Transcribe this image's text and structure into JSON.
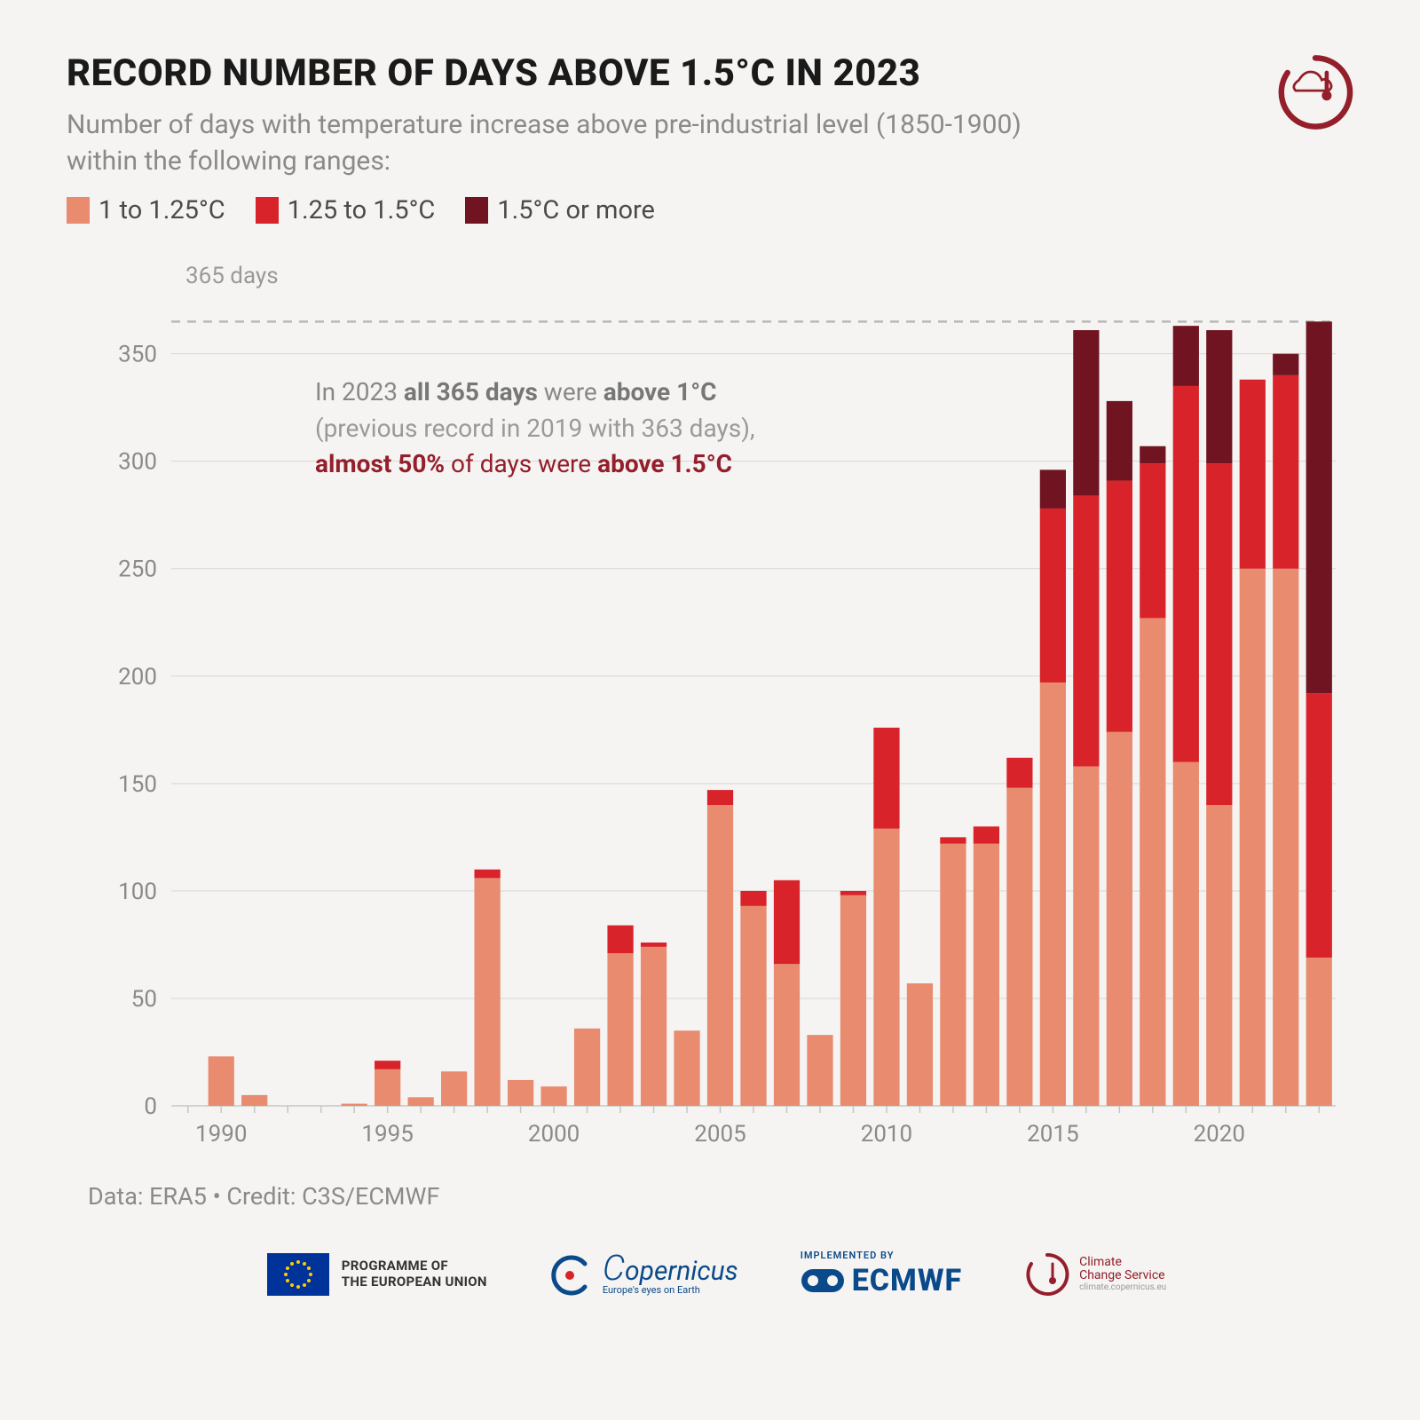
{
  "title": "RECORD NUMBER OF DAYS ABOVE 1.5°C IN 2023",
  "subtitle": "Number of days with temperature increase above pre-industrial level (1850-1900) within the following ranges:",
  "legend": [
    {
      "label": "1 to 1.25°C",
      "color": "#e88b6f"
    },
    {
      "label": "1.25 to 1.5°C",
      "color": "#d8232a"
    },
    {
      "label": "1.5°C or more",
      "color": "#6f1420"
    }
  ],
  "reference_line": {
    "value": 365,
    "label": "365 days",
    "color": "#b8b8b8"
  },
  "annotation": {
    "line1_pre": "In 2023 ",
    "line1_b1": "all 365 days",
    "line1_mid": " were ",
    "line1_b2": "above 1°C",
    "line2": "(previous record in 2019 with 363 days),",
    "line3_b1": "almost 50%",
    "line3_mid": " of days were ",
    "line3_b2": "above 1.5°C"
  },
  "chart": {
    "type": "stacked-bar",
    "background": "#f5f4f2",
    "grid_color": "#d8d6d2",
    "axis_color": "#c8c6c2",
    "tick_font_size": 26,
    "tick_color": "#8a8a8a",
    "y": {
      "min": 0,
      "max": 365,
      "ticks": [
        0,
        50,
        100,
        150,
        200,
        250,
        300,
        350
      ],
      "plot_max": 380
    },
    "x_tick_labels": [
      1990,
      1995,
      2000,
      2005,
      2010,
      2015,
      2020
    ],
    "years_start": 1989,
    "years_end": 2023,
    "bar_gap_ratio": 0.22,
    "series_colors": {
      "low": "#e88b6f",
      "mid": "#d8232a",
      "high": "#6f1420"
    },
    "data": [
      {
        "year": 1989,
        "low": 0,
        "mid": 0,
        "high": 0
      },
      {
        "year": 1990,
        "low": 23,
        "mid": 0,
        "high": 0
      },
      {
        "year": 1991,
        "low": 5,
        "mid": 0,
        "high": 0
      },
      {
        "year": 1992,
        "low": 0,
        "mid": 0,
        "high": 0
      },
      {
        "year": 1993,
        "low": 0,
        "mid": 0,
        "high": 0
      },
      {
        "year": 1994,
        "low": 1,
        "mid": 0,
        "high": 0
      },
      {
        "year": 1995,
        "low": 17,
        "mid": 4,
        "high": 0
      },
      {
        "year": 1996,
        "low": 4,
        "mid": 0,
        "high": 0
      },
      {
        "year": 1997,
        "low": 16,
        "mid": 0,
        "high": 0
      },
      {
        "year": 1998,
        "low": 106,
        "mid": 4,
        "high": 0
      },
      {
        "year": 1999,
        "low": 12,
        "mid": 0,
        "high": 0
      },
      {
        "year": 2000,
        "low": 9,
        "mid": 0,
        "high": 0
      },
      {
        "year": 2001,
        "low": 36,
        "mid": 0,
        "high": 0
      },
      {
        "year": 2002,
        "low": 71,
        "mid": 13,
        "high": 0
      },
      {
        "year": 2003,
        "low": 74,
        "mid": 2,
        "high": 0
      },
      {
        "year": 2004,
        "low": 35,
        "mid": 0,
        "high": 0
      },
      {
        "year": 2005,
        "low": 140,
        "mid": 7,
        "high": 0
      },
      {
        "year": 2006,
        "low": 93,
        "mid": 7,
        "high": 0
      },
      {
        "year": 2007,
        "low": 66,
        "mid": 39,
        "high": 0
      },
      {
        "year": 2008,
        "low": 33,
        "mid": 0,
        "high": 0
      },
      {
        "year": 2009,
        "low": 98,
        "mid": 2,
        "high": 0
      },
      {
        "year": 2010,
        "low": 129,
        "mid": 47,
        "high": 0
      },
      {
        "year": 2011,
        "low": 57,
        "mid": 0,
        "high": 0
      },
      {
        "year": 2012,
        "low": 122,
        "mid": 3,
        "high": 0
      },
      {
        "year": 2013,
        "low": 122,
        "mid": 8,
        "high": 0
      },
      {
        "year": 2014,
        "low": 148,
        "mid": 14,
        "high": 0
      },
      {
        "year": 2015,
        "low": 197,
        "mid": 81,
        "high": 18
      },
      {
        "year": 2016,
        "low": 158,
        "mid": 126,
        "high": 77
      },
      {
        "year": 2017,
        "low": 174,
        "mid": 117,
        "high": 37
      },
      {
        "year": 2018,
        "low": 227,
        "mid": 72,
        "high": 8
      },
      {
        "year": 2019,
        "low": 160,
        "mid": 175,
        "high": 28
      },
      {
        "year": 2020,
        "low": 140,
        "mid": 159,
        "high": 62
      },
      {
        "year": 2021,
        "low": 250,
        "mid": 88,
        "high": 0
      },
      {
        "year": 2022,
        "low": 250,
        "mid": 90,
        "high": 10
      },
      {
        "year": 2023,
        "low": 69,
        "mid": 123,
        "high": 173
      }
    ]
  },
  "credit": "Data: ERA5 • Credit: C3S/ECMWF",
  "footer": {
    "eu_line1": "PROGRAMME OF",
    "eu_line2": "THE EUROPEAN UNION",
    "copernicus": "opernicus",
    "copernicus_tag": "Europe's eyes on Earth",
    "ecmwf_top": "IMPLEMENTED BY",
    "ecmwf": "ECMWF",
    "ccs1": "Climate",
    "ccs2": "Change Service",
    "ccs_sub": "climate.copernicus.eu"
  },
  "colors": {
    "brand_red": "#941e2a",
    "eu_blue": "#003399",
    "ecmwf_blue": "#0b4a8a"
  }
}
